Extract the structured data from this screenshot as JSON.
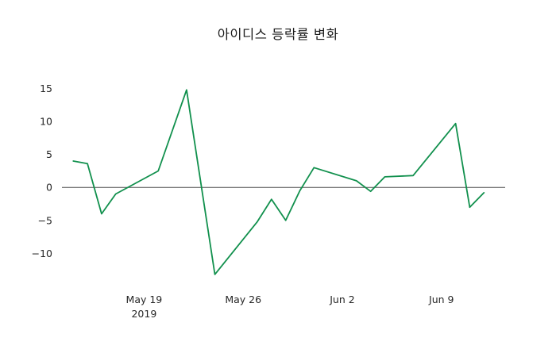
{
  "chart_data": {
    "type": "line",
    "title": "아이디스 등락률 변화",
    "xlabel": "",
    "ylabel": "",
    "grid": false,
    "legend": false,
    "zero_line": true,
    "zero_line_color": "#4d4d4d",
    "background_color": "#ffffff",
    "x_base": "2019-05-14",
    "xlim_days": [
      -0.8,
      30.5
    ],
    "ylim": [
      -14.9,
      16.4
    ],
    "yticks": [
      -10,
      -5,
      0,
      5,
      10,
      15
    ],
    "xticks": [
      {
        "date": "2019-05-19",
        "label": "May 19",
        "sublabel": "2019"
      },
      {
        "date": "2019-05-26",
        "label": "May 26",
        "sublabel": ""
      },
      {
        "date": "2019-06-02",
        "label": "Jun 2",
        "sublabel": ""
      },
      {
        "date": "2019-06-09",
        "label": "Jun 9",
        "sublabel": ""
      }
    ],
    "series": [
      {
        "name": "아이디스 등락률",
        "color": "#11904d",
        "line_width": 1.8,
        "points": [
          [
            "2019-05-14",
            4.0
          ],
          [
            "2019-05-15",
            3.6
          ],
          [
            "2019-05-16",
            -4.0
          ],
          [
            "2019-05-17",
            -1.0
          ],
          [
            "2019-05-20",
            2.5
          ],
          [
            "2019-05-22",
            14.8
          ],
          [
            "2019-05-24",
            -13.2
          ],
          [
            "2019-05-27",
            -5.2
          ],
          [
            "2019-05-28",
            -1.8
          ],
          [
            "2019-05-29",
            -5.0
          ],
          [
            "2019-05-30",
            -0.5
          ],
          [
            "2019-05-31",
            3.0
          ],
          [
            "2019-06-03",
            1.0
          ],
          [
            "2019-06-04",
            -0.6
          ],
          [
            "2019-06-05",
            1.6
          ],
          [
            "2019-06-07",
            1.8
          ],
          [
            "2019-06-10",
            9.7
          ],
          [
            "2019-06-11",
            -3.0
          ],
          [
            "2019-06-12",
            -0.8
          ]
        ]
      }
    ]
  }
}
